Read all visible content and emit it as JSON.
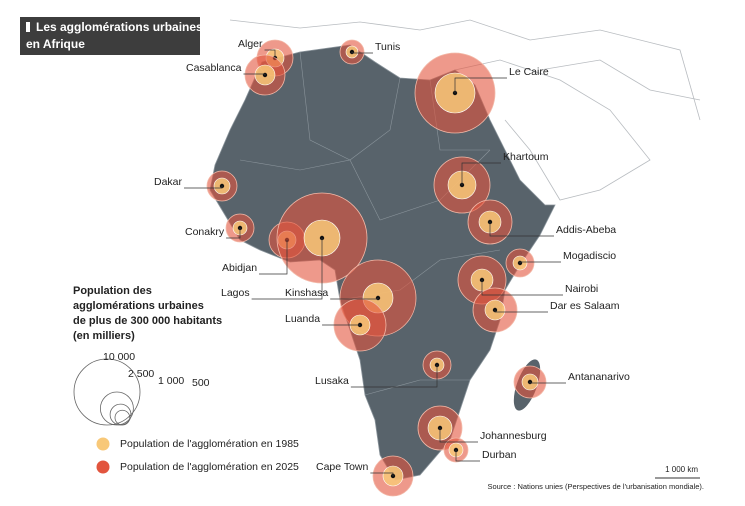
{
  "title": [
    "Les agglomérations urbaines",
    "en Afrique"
  ],
  "cities": [
    {
      "name": "Alger"
    },
    {
      "name": "Tunis"
    },
    {
      "name": "Casablanca"
    },
    {
      "name": "Le Caire"
    },
    {
      "name": "Khartoum"
    },
    {
      "name": "Dakar"
    },
    {
      "name": "Addis-Abeba"
    },
    {
      "name": "Conakry"
    },
    {
      "name": "Mogadiscio"
    },
    {
      "name": "Abidjan"
    },
    {
      "name": "Nairobi"
    },
    {
      "name": "Lagos"
    },
    {
      "name": "Kinshasa"
    },
    {
      "name": "Dar es Salaam"
    },
    {
      "name": "Luanda"
    },
    {
      "name": "Antananarivo"
    },
    {
      "name": "Lusaka"
    },
    {
      "name": "Johannesburg"
    },
    {
      "name": "Durban"
    },
    {
      "name": "Cape Town"
    }
  ],
  "legend": {
    "heading": [
      "Population des",
      "agglomérations urbaines",
      "de plus de 300 000 habitants",
      "(en milliers)"
    ],
    "sizes": [
      {
        "value": 10000,
        "label": "10 000"
      },
      {
        "value": 2500,
        "label": "2 500"
      },
      {
        "value": 1000,
        "label": "1 000"
      },
      500
    ],
    "series": [
      {
        "label": "Population de l'agglomération en 1985",
        "color": "#f8c878"
      },
      {
        "label": "Population de l'agglomération en 2025",
        "color": "#e2553e"
      }
    ]
  },
  "scale": "1 000 km",
  "source": "Source : Nations unies (Perspectives de l'urbanisation mondiale)."
}
